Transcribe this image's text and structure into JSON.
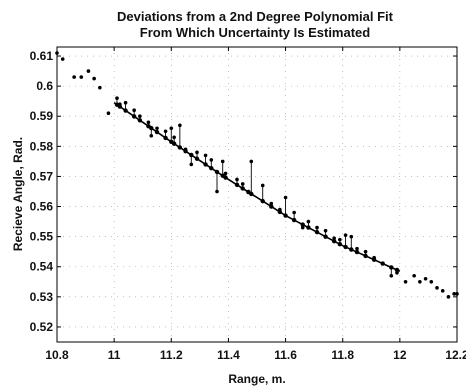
{
  "chart_data": {
    "type": "scatter",
    "title": [
      "Deviations from a 2nd Degree Polynomial Fit",
      "From Which Uncertainty Is Estimated"
    ],
    "xlabel": "Range, m.",
    "ylabel": "Recieve Angle, Rad.",
    "xlim": [
      10.8,
      12.2
    ],
    "ylim": [
      0.515,
      0.613
    ],
    "xticks": [
      10.8,
      11,
      11.2,
      11.4,
      11.6,
      11.8,
      12,
      12.2
    ],
    "xtick_labels": [
      "10.8",
      "11",
      "11.2",
      "11.4",
      "11.6",
      "11.8",
      "12",
      "12.2"
    ],
    "yticks": [
      0.52,
      0.53,
      0.54,
      0.55,
      0.56,
      0.57,
      0.58,
      0.59,
      0.6,
      0.61
    ],
    "ytick_labels": [
      "0.52",
      "0.53",
      "0.54",
      "0.55",
      "0.56",
      "0.57",
      "0.58",
      "0.59",
      "0.6",
      "0.61"
    ],
    "grid": "dotted",
    "fit_line": {
      "x": [
        11.0,
        11.2,
        11.4,
        11.6,
        11.8,
        12.0
      ],
      "y": [
        0.5945,
        0.5815,
        0.569,
        0.557,
        0.547,
        0.5385
      ]
    },
    "points": [
      {
        "x": 10.8,
        "y": 0.611
      },
      {
        "x": 10.82,
        "y": 0.609
      },
      {
        "x": 10.86,
        "y": 0.603
      },
      {
        "x": 10.885,
        "y": 0.603
      },
      {
        "x": 10.91,
        "y": 0.605
      },
      {
        "x": 10.93,
        "y": 0.6025
      },
      {
        "x": 10.95,
        "y": 0.5995
      },
      {
        "x": 10.98,
        "y": 0.591
      },
      {
        "x": 11.01,
        "y": 0.596
      },
      {
        "x": 11.02,
        "y": 0.594
      },
      {
        "x": 11.04,
        "y": 0.5945
      },
      {
        "x": 11.07,
        "y": 0.592
      },
      {
        "x": 11.09,
        "y": 0.59
      },
      {
        "x": 11.12,
        "y": 0.588
      },
      {
        "x": 11.13,
        "y": 0.5835
      },
      {
        "x": 11.15,
        "y": 0.586
      },
      {
        "x": 11.18,
        "y": 0.585
      },
      {
        "x": 11.2,
        "y": 0.586
      },
      {
        "x": 11.21,
        "y": 0.583
      },
      {
        "x": 11.23,
        "y": 0.587
      },
      {
        "x": 11.25,
        "y": 0.579
      },
      {
        "x": 11.27,
        "y": 0.574
      },
      {
        "x": 11.29,
        "y": 0.578
      },
      {
        "x": 11.32,
        "y": 0.577
      },
      {
        "x": 11.34,
        "y": 0.5755
      },
      {
        "x": 11.36,
        "y": 0.565
      },
      {
        "x": 11.38,
        "y": 0.575
      },
      {
        "x": 11.39,
        "y": 0.571
      },
      {
        "x": 11.43,
        "y": 0.569
      },
      {
        "x": 11.45,
        "y": 0.5675
      },
      {
        "x": 11.47,
        "y": 0.565
      },
      {
        "x": 11.48,
        "y": 0.575
      },
      {
        "x": 11.52,
        "y": 0.567
      },
      {
        "x": 11.55,
        "y": 0.561
      },
      {
        "x": 11.58,
        "y": 0.559
      },
      {
        "x": 11.6,
        "y": 0.563
      },
      {
        "x": 11.63,
        "y": 0.558
      },
      {
        "x": 11.66,
        "y": 0.553
      },
      {
        "x": 11.68,
        "y": 0.555
      },
      {
        "x": 11.71,
        "y": 0.553
      },
      {
        "x": 11.74,
        "y": 0.552
      },
      {
        "x": 11.77,
        "y": 0.5495
      },
      {
        "x": 11.79,
        "y": 0.549
      },
      {
        "x": 11.81,
        "y": 0.5505
      },
      {
        "x": 11.83,
        "y": 0.55
      },
      {
        "x": 11.85,
        "y": 0.546
      },
      {
        "x": 11.88,
        "y": 0.545
      },
      {
        "x": 11.91,
        "y": 0.543
      },
      {
        "x": 11.94,
        "y": 0.541
      },
      {
        "x": 11.97,
        "y": 0.537
      },
      {
        "x": 11.99,
        "y": 0.538
      },
      {
        "x": 12.02,
        "y": 0.535
      },
      {
        "x": 12.05,
        "y": 0.537
      },
      {
        "x": 12.07,
        "y": 0.535
      },
      {
        "x": 12.09,
        "y": 0.536
      },
      {
        "x": 12.11,
        "y": 0.535
      },
      {
        "x": 12.13,
        "y": 0.533
      },
      {
        "x": 12.15,
        "y": 0.532
      },
      {
        "x": 12.17,
        "y": 0.53
      },
      {
        "x": 12.19,
        "y": 0.531
      },
      {
        "x": 12.2,
        "y": 0.531
      }
    ]
  }
}
